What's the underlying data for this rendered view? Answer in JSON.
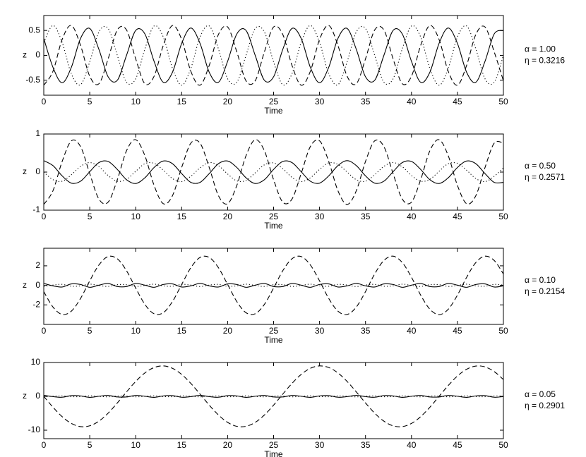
{
  "chart_data": [
    {
      "type": "line",
      "xlabel": "Time",
      "ylabel": "z",
      "annotations": [
        "α = 1.00",
        "η = 0.3216"
      ],
      "xlim": [
        0,
        50
      ],
      "xticks": [
        0,
        5,
        10,
        15,
        20,
        25,
        30,
        35,
        40,
        45,
        50
      ],
      "ylim": [
        -0.8,
        0.8
      ],
      "yticks": [
        -0.5,
        0,
        0.5
      ],
      "x": [
        0,
        1,
        2,
        3,
        4,
        5,
        6,
        7,
        8,
        9,
        10,
        11,
        12,
        13,
        14,
        15,
        16,
        17,
        18,
        19,
        20,
        21,
        22,
        23,
        24,
        25,
        26,
        27,
        28,
        29,
        30,
        31,
        32,
        33,
        34,
        35,
        36,
        37,
        38,
        39,
        40,
        41,
        42,
        43,
        44,
        45,
        46,
        47,
        48,
        49,
        50
      ],
      "series": [
        {
          "color": "#000000",
          "dash": "solid",
          "values": [
            0.34,
            -0.24,
            -0.55,
            -0.24,
            0.34,
            0.54,
            0.12,
            -0.43,
            -0.5,
            0,
            0.5,
            0.43,
            -0.12,
            -0.54,
            -0.34,
            0.24,
            0.55,
            0.24,
            -0.34,
            -0.54,
            -0.12,
            0.43,
            0.5,
            0,
            -0.5,
            -0.43,
            0.12,
            0.54,
            0.34,
            -0.24,
            -0.55,
            -0.24,
            0.34,
            0.54,
            0.12,
            -0.43,
            -0.5,
            0,
            0.5,
            0.43,
            -0.12,
            -0.54,
            -0.34,
            0.24,
            0.55,
            0.24,
            -0.34,
            -0.54,
            -0.12,
            0.43,
            0.5
          ]
        },
        {
          "color": "#000000",
          "dash": "dashed",
          "values": [
            -0.6,
            -0.32,
            0.32,
            0.6,
            0.2,
            -0.42,
            -0.57,
            -0.07,
            0.51,
            0.51,
            -0.07,
            -0.57,
            -0.42,
            0.2,
            0.6,
            0.32,
            -0.32,
            -0.6,
            -0.2,
            0.42,
            0.57,
            0.07,
            -0.51,
            -0.51,
            0.07,
            0.57,
            0.42,
            -0.2,
            -0.6,
            -0.32,
            0.32,
            0.6,
            0.2,
            -0.42,
            -0.57,
            -0.07,
            0.51,
            0.51,
            -0.07,
            -0.57,
            -0.42,
            0.2,
            0.6,
            0.32,
            -0.32,
            -0.6,
            -0.2,
            0.42,
            0.57,
            0.07,
            -0.51
          ]
        },
        {
          "color": "#000000",
          "dash": "dotted",
          "values": [
            0.26,
            0.6,
            0.26,
            -0.37,
            -0.59,
            -0.13,
            0.47,
            0.54,
            0,
            -0.54,
            -0.47,
            0.13,
            0.59,
            0.37,
            -0.26,
            -0.6,
            -0.26,
            0.37,
            0.59,
            0.13,
            -0.47,
            -0.54,
            0,
            0.54,
            0.47,
            -0.13,
            -0.59,
            -0.37,
            0.26,
            0.6,
            0.26,
            -0.37,
            -0.59,
            -0.13,
            0.47,
            0.54,
            0,
            -0.54,
            -0.47,
            0.13,
            0.59,
            0.37,
            -0.26,
            -0.6,
            -0.26,
            0.37,
            0.59,
            0.13,
            -0.47,
            -0.54,
            0
          ]
        }
      ]
    },
    {
      "type": "line",
      "xlabel": "Time",
      "ylabel": "z",
      "annotations": [
        "α = 0.50",
        "η = 0.2571"
      ],
      "xlim": [
        0,
        50
      ],
      "xticks": [
        0,
        5,
        10,
        15,
        20,
        25,
        30,
        35,
        40,
        45,
        50
      ],
      "ylim": [
        -1,
        1
      ],
      "yticks": [
        -1,
        0,
        1
      ],
      "x": [
        0,
        1,
        2,
        3,
        4,
        5,
        6,
        7,
        8,
        9,
        10,
        11,
        12,
        13,
        14,
        15,
        16,
        17,
        18,
        19,
        20,
        21,
        22,
        23,
        24,
        25,
        26,
        27,
        28,
        29,
        30,
        31,
        32,
        33,
        34,
        35,
        36,
        37,
        38,
        39,
        40,
        41,
        42,
        43,
        44,
        45,
        46,
        47,
        48,
        49,
        50
      ],
      "series": [
        {
          "color": "#000000",
          "dash": "solid",
          "values": [
            0.3,
            0.17,
            -0.1,
            -0.29,
            -0.24,
            0.01,
            0.25,
            0.28,
            0.07,
            -0.2,
            -0.3,
            -0.15,
            0.12,
            0.29,
            0.22,
            -0.04,
            -0.27,
            -0.27,
            -0.04,
            0.22,
            0.29,
            0.12,
            -0.15,
            -0.3,
            -0.2,
            0.07,
            0.28,
            0.25,
            0.01,
            -0.24,
            -0.29,
            -0.1,
            0.17,
            0.3,
            0.17,
            -0.1,
            -0.29,
            -0.24,
            0.01,
            0.25,
            0.28,
            0.07,
            -0.2,
            -0.3,
            -0.15,
            0.12,
            0.29,
            0.22,
            -0.04,
            -0.27,
            -0.27
          ]
        },
        {
          "color": "#000000",
          "dash": "dashed",
          "values": [
            -0.85,
            -0.49,
            0.28,
            0.82,
            0.67,
            -0.04,
            -0.71,
            -0.79,
            -0.2,
            0.56,
            0.85,
            0.43,
            -0.35,
            -0.83,
            -0.62,
            0.12,
            0.76,
            0.76,
            0.12,
            -0.62,
            -0.83,
            -0.35,
            0.43,
            0.85,
            0.56,
            -0.2,
            -0.79,
            -0.71,
            -0.04,
            0.67,
            0.82,
            0.28,
            -0.49,
            -0.85,
            -0.49,
            0.28,
            0.82,
            0.67,
            -0.04,
            -0.71,
            -0.79,
            -0.2,
            0.56,
            0.85,
            0.43,
            -0.35,
            -0.83,
            -0.62,
            0.12,
            0.76,
            0.76
          ]
        },
        {
          "color": "#000000",
          "dash": "dotted",
          "values": [
            0,
            -0.2,
            -0.24,
            -0.07,
            0.15,
            0.25,
            0.14,
            -0.09,
            -0.24,
            -0.19,
            0.02,
            0.22,
            0.23,
            0.05,
            -0.17,
            -0.25,
            -0.11,
            0.11,
            0.25,
            0.17,
            -0.05,
            -0.23,
            -0.22,
            -0.02,
            0.19,
            0.24,
            0.09,
            -0.14,
            -0.25,
            -0.15,
            0.07,
            0.24,
            0.2,
            0,
            -0.2,
            -0.24,
            -0.07,
            0.15,
            0.25,
            0.14,
            -0.09,
            -0.24,
            -0.19,
            0.02,
            0.22,
            0.23,
            0.05,
            -0.17,
            -0.25,
            -0.11,
            0.11
          ]
        }
      ]
    },
    {
      "type": "line",
      "xlabel": "Time",
      "ylabel": "z",
      "annotations": [
        "α = 0.10",
        "η = 0.2154"
      ],
      "xlim": [
        0,
        50
      ],
      "xticks": [
        0,
        5,
        10,
        15,
        20,
        25,
        30,
        35,
        40,
        45,
        50
      ],
      "ylim": [
        -4,
        3.8
      ],
      "yticks": [
        -2,
        0,
        2
      ],
      "x": [
        0,
        1,
        2,
        3,
        4,
        5,
        6,
        7,
        8,
        9,
        10,
        11,
        12,
        13,
        14,
        15,
        16,
        17,
        18,
        19,
        20,
        21,
        22,
        23,
        24,
        25,
        26,
        27,
        28,
        29,
        30,
        31,
        32,
        33,
        34,
        35,
        36,
        37,
        38,
        39,
        40,
        41,
        42,
        43,
        44,
        45,
        46,
        47,
        48,
        49,
        50
      ],
      "series": [
        {
          "color": "#000000",
          "dash": "solid",
          "values": [
            0.2,
            -0.05,
            -0.17,
            0.15,
            0.09,
            -0.2,
            0.02,
            0.19,
            -0.12,
            -0.12,
            0.19,
            0.02,
            -0.2,
            0.09,
            0.15,
            -0.17,
            -0.05,
            0.2,
            -0.05,
            -0.17,
            0.15,
            0.09,
            -0.2,
            0.02,
            0.19,
            -0.12,
            -0.12,
            0.19,
            0.02,
            -0.2,
            0.09,
            0.15,
            -0.17,
            -0.05,
            0.2,
            -0.05,
            -0.17,
            0.15,
            0.09,
            -0.2,
            0.02,
            0.19,
            -0.12,
            -0.12,
            0.19,
            0.02,
            -0.2,
            0.09,
            0.15,
            -0.17,
            -0.05
          ]
        },
        {
          "color": "#000000",
          "dash": "dashed",
          "values": [
            -0.64,
            -2.22,
            -2.98,
            -2.64,
            -1.34,
            0.46,
            2.09,
            2.95,
            2.72,
            1.5,
            -0.28,
            -1.95,
            -2.91,
            -2.8,
            -1.66,
            0.09,
            1.81,
            2.86,
            2.86,
            1.81,
            0.09,
            -1.66,
            -2.8,
            -2.91,
            -1.95,
            -0.28,
            1.5,
            2.72,
            2.95,
            2.09,
            0.46,
            -1.34,
            -2.64,
            -2.98,
            -2.22,
            -0.64,
            1.17,
            2.55,
            2.99,
            2.34,
            0.83,
            -1,
            -2.44,
            -3,
            -2.45,
            -1,
            0.82,
            2.34,
            2.99,
            2.55,
            1.17
          ]
        },
        {
          "color": "#000000",
          "dash": "dotted",
          "values": [
            -0.12,
            0.03,
            0.1,
            -0.09,
            -0.05,
            0.12,
            -0.01,
            -0.11,
            0.07,
            0.07,
            -0.11,
            -0.01,
            0.12,
            -0.05,
            -0.09,
            0.1,
            0.03,
            -0.12,
            0.03,
            0.1,
            -0.09,
            -0.05,
            0.12,
            -0.01,
            -0.11,
            0.07,
            0.07,
            -0.11,
            -0.01,
            0.12,
            -0.05,
            -0.09,
            0.1,
            0.03,
            -0.12,
            0.03,
            0.1,
            -0.09,
            -0.05,
            0.12,
            -0.01,
            -0.11,
            0.07,
            0.07,
            -0.11,
            -0.01,
            0.12,
            -0.05,
            -0.09,
            0.1,
            0.03
          ]
        }
      ]
    },
    {
      "type": "line",
      "xlabel": "Time",
      "ylabel": "z",
      "annotations": [
        "α = 0.05",
        "η = 0.2901"
      ],
      "xlim": [
        0,
        50
      ],
      "xticks": [
        0,
        5,
        10,
        15,
        20,
        25,
        30,
        35,
        40,
        45,
        50
      ],
      "ylim": [
        -12.5,
        10
      ],
      "yticks": [
        -10,
        0,
        10
      ],
      "x": [
        0,
        1,
        2,
        3,
        4,
        5,
        6,
        7,
        8,
        9,
        10,
        11,
        12,
        13,
        14,
        15,
        16,
        17,
        18,
        19,
        20,
        21,
        22,
        23,
        24,
        25,
        26,
        27,
        28,
        29,
        30,
        31,
        32,
        33,
        34,
        35,
        36,
        37,
        38,
        39,
        40,
        41,
        42,
        43,
        44,
        45,
        46,
        47,
        48,
        49,
        50
      ],
      "series": [
        {
          "color": "#000000",
          "dash": "solid",
          "values": [
            0.3,
            -0.08,
            -0.26,
            0.22,
            0.13,
            -0.29,
            0.03,
            0.28,
            -0.18,
            -0.18,
            0.28,
            0.03,
            -0.29,
            0.13,
            0.22,
            -0.26,
            -0.08,
            0.3,
            -0.08,
            -0.26,
            0.22,
            0.13,
            -0.29,
            0.03,
            0.28,
            -0.18,
            -0.18,
            0.28,
            0.03,
            -0.29,
            0.13,
            0.22,
            -0.26,
            -0.08,
            0.3,
            -0.08,
            -0.26,
            0.22,
            0.13,
            -0.29,
            0.03,
            0.28,
            -0.18,
            -0.18,
            0.28,
            0.03,
            -0.29,
            0.13,
            0.22,
            -0.26,
            -0.08
          ]
        },
        {
          "color": "#000000",
          "dash": "dashed",
          "values": [
            0,
            -3.21,
            -6,
            -8,
            -8.95,
            -8.7,
            -7.32,
            -4.97,
            -1.95,
            1.31,
            4.4,
            6.92,
            8.51,
            8.99,
            8.28,
            6.48,
            3.82,
            0.66,
            -2.59,
            -5.5,
            -7.68,
            -8.85,
            -8.85,
            -7.69,
            -5.51,
            -2.6,
            0.66,
            3.82,
            6.48,
            8.28,
            8.99,
            8.51,
            6.92,
            4.4,
            1.31,
            -1.95,
            -4.97,
            -7.32,
            -8.71,
            -8.95,
            -8,
            -6,
            -3.22,
            0,
            3.21,
            6,
            8,
            8.95,
            8.7,
            7.32,
            4.97
          ]
        },
        {
          "color": "#000000",
          "dash": "dotted",
          "values": [
            -0.15,
            0.04,
            0.13,
            -0.11,
            -0.07,
            0.15,
            -0.01,
            -0.14,
            0.09,
            0.09,
            -0.14,
            -0.01,
            0.15,
            -0.07,
            -0.11,
            0.13,
            0.04,
            -0.15,
            0.04,
            0.13,
            -0.11,
            -0.07,
            0.15,
            -0.01,
            -0.14,
            0.09,
            0.09,
            -0.14,
            -0.01,
            0.15,
            -0.07,
            -0.11,
            0.13,
            0.04,
            -0.15,
            0.04,
            0.13,
            -0.11,
            -0.07,
            0.15,
            -0.01,
            -0.14,
            0.09,
            0.09,
            -0.14,
            -0.01,
            0.15,
            -0.07,
            -0.11,
            0.13,
            0.04
          ]
        }
      ]
    }
  ]
}
